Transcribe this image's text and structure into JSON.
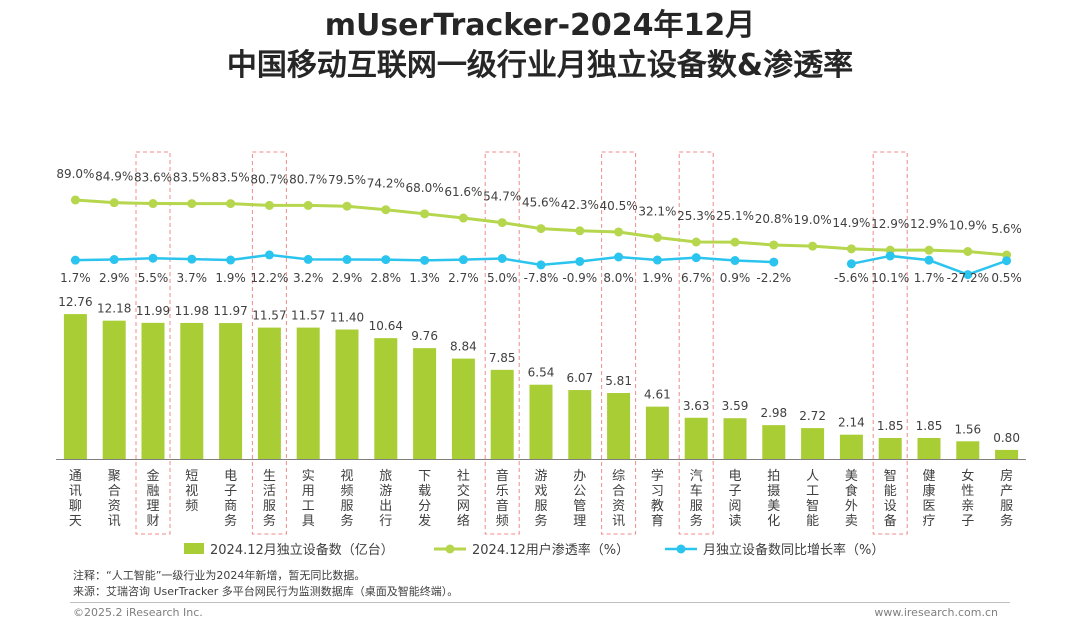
{
  "title_line1": "mUserTracker-2024年12月",
  "title_line2": "中国移动互联网一级行业月独立设备数&渗透率",
  "chart_data": {
    "type": "bar",
    "categories": [
      "通讯聊天",
      "聚合资讯",
      "金融理财",
      "短视频",
      "电子商务",
      "生活服务",
      "实用工具",
      "视频服务",
      "旅游出行",
      "下载分发",
      "社交网络",
      "音乐音频",
      "游戏服务",
      "办公管理",
      "综合资讯",
      "学习教育",
      "汽车服务",
      "电子阅读",
      "拍摄美化",
      "人工智能",
      "美食外卖",
      "智能设备",
      "健康医疗",
      "女性亲子",
      "房产服务"
    ],
    "highlighted": [
      "金融理财",
      "生活服务",
      "音乐音频",
      "综合资讯",
      "汽车服务",
      "智能设备"
    ],
    "series": [
      {
        "name": "2024.12月独立设备数（亿台）",
        "type": "bar",
        "color": "#a8cd35",
        "values": [
          12.76,
          12.18,
          11.99,
          11.98,
          11.97,
          11.57,
          11.57,
          11.4,
          10.64,
          9.76,
          8.84,
          7.85,
          6.54,
          6.07,
          5.81,
          4.61,
          3.63,
          3.59,
          2.98,
          2.72,
          2.14,
          1.85,
          1.85,
          1.56,
          0.8
        ]
      },
      {
        "name": "2024.12用户渗透率（%）",
        "type": "line",
        "color": "#b5d64d",
        "values": [
          89.0,
          84.9,
          83.6,
          83.5,
          83.5,
          80.7,
          80.7,
          79.5,
          74.2,
          68.0,
          61.6,
          54.7,
          45.6,
          42.3,
          40.5,
          32.1,
          25.3,
          25.1,
          20.8,
          19.0,
          14.9,
          12.9,
          12.9,
          10.9,
          5.6
        ]
      },
      {
        "name": "月独立设备数同比增长率（%）",
        "type": "line",
        "color": "#2bc4ee",
        "values": [
          1.7,
          2.9,
          5.5,
          3.7,
          1.9,
          12.2,
          3.2,
          2.9,
          2.8,
          1.3,
          2.7,
          5.0,
          -7.8,
          -0.9,
          8.0,
          1.9,
          6.7,
          0.9,
          -2.2,
          null,
          -5.6,
          10.1,
          1.7,
          -27.2,
          0.5
        ]
      }
    ],
    "bar_labels": [
      "12.76",
      "12.18",
      "11.99",
      "11.98",
      "11.97",
      "11.57",
      "11.57",
      "11.40",
      "10.64",
      "9.76",
      "8.84",
      "7.85",
      "6.54",
      "6.07",
      "5.81",
      "4.61",
      "3.63",
      "3.59",
      "2.98",
      "2.72",
      "2.14",
      "1.85",
      "1.85",
      "1.56",
      "0.80"
    ],
    "penetration_labels": [
      "89.0%",
      "84.9%",
      "83.6%",
      "83.5%",
      "83.5%",
      "80.7%",
      "80.7%",
      "79.5%",
      "74.2%",
      "68.0%",
      "61.6%",
      "54.7%",
      "45.6%",
      "42.3%",
      "40.5%",
      "32.1%",
      "25.3%",
      "25.1%",
      "20.8%",
      "19.0%",
      "14.9%",
      "12.9%",
      "12.9%",
      "10.9%",
      "5.6%"
    ],
    "growth_labels": [
      "1.7%",
      "2.9%",
      "5.5%",
      "3.7%",
      "1.9%",
      "12.2%",
      "3.2%",
      "2.9%",
      "2.8%",
      "1.3%",
      "2.7%",
      "5.0%",
      "-7.8%",
      "-0.9%",
      "8.0%",
      "1.9%",
      "6.7%",
      "0.9%",
      "-2.2%",
      null,
      "-5.6%",
      "10.1%",
      "1.7%",
      "-27.2%",
      "0.5%"
    ],
    "ylim_bar": [
      0,
      14
    ],
    "legend_position": "bottom"
  },
  "footer": {
    "note": "注释：“人工智能”一级行业为2024年新增，暂无同比数据。",
    "source": "来源：艾瑞咨询 UserTracker 多平台网民行为监测数据库（桌面及智能终端）。",
    "copyright": "©2025.2 iResearch Inc.",
    "website": "www.iresearch.com.cn"
  }
}
